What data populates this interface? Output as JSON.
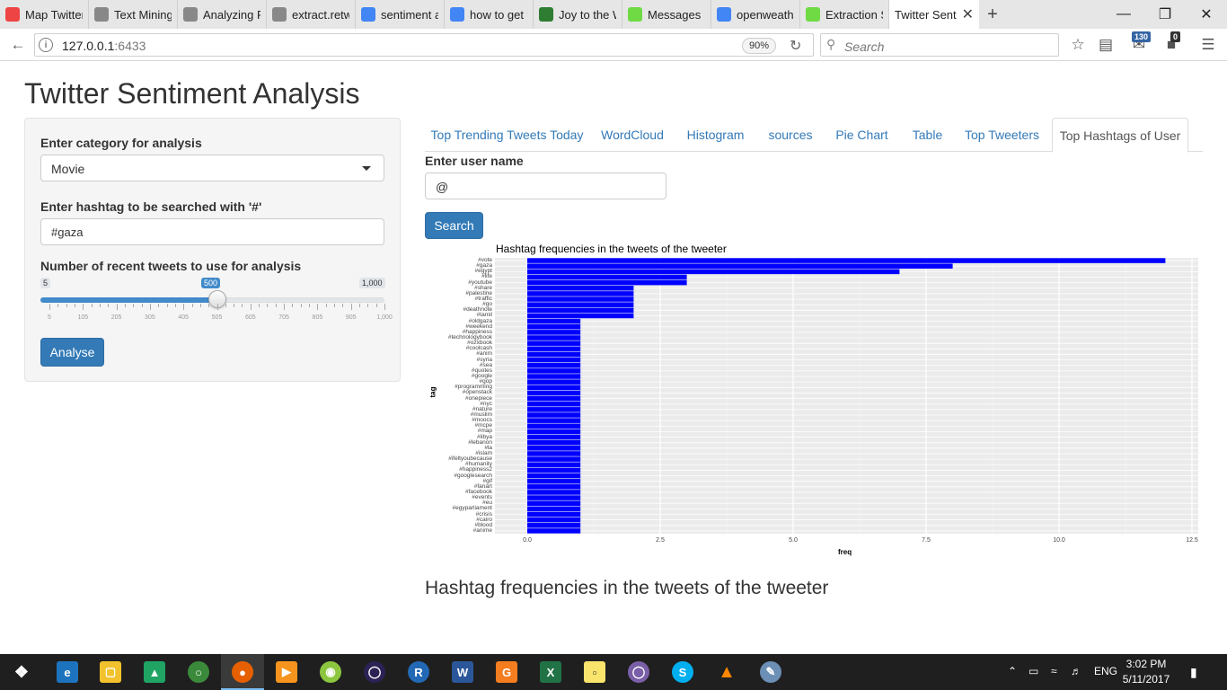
{
  "browser": {
    "tabs": [
      {
        "title": "Map Twitter",
        "icon": "map-icon",
        "color": "#e44"
      },
      {
        "title": "Text Mining wit",
        "icon": "page-icon",
        "color": "#888"
      },
      {
        "title": "Analyzing R-Blo",
        "icon": "page-icon",
        "color": "#888"
      },
      {
        "title": "extract.retweets",
        "icon": "page-icon",
        "color": "#888"
      },
      {
        "title": "sentiment a",
        "icon": "google-icon",
        "color": "#4285f4"
      },
      {
        "title": "how to get t",
        "icon": "google-icon",
        "color": "#4285f4"
      },
      {
        "title": "Joy to the W",
        "icon": "globe-icon",
        "color": "#2e7d32"
      },
      {
        "title": "Messages",
        "icon": "upwork-icon",
        "color": "#6fda44"
      },
      {
        "title": "openweathe",
        "icon": "google-icon",
        "color": "#4285f4"
      },
      {
        "title": "Extraction S",
        "icon": "upwork-icon",
        "color": "#6fda44"
      }
    ],
    "active_tab": "Twitter Senti",
    "url_host": "127.0.0.1",
    "url_port": ":6433",
    "zoom": "90%",
    "search_placeholder": "Search",
    "badge_count_1": "130",
    "badge_count_2": "0"
  },
  "app": {
    "title": "Twitter Sentiment Analysis",
    "sidebar": {
      "category_label": "Enter category for analysis",
      "category_value": "Movie",
      "hashtag_label": "Enter hashtag to be searched with '#'",
      "hashtag_value": "#gaza",
      "tweets_label": "Number of recent tweets to use for analysis",
      "slider_min": "5",
      "slider_max": "1,000",
      "slider_value": "500",
      "slider_fraction": 0.5,
      "slider_ticks": [
        "5",
        "105",
        "205",
        "305",
        "405",
        "505",
        "605",
        "705",
        "805",
        "905",
        "1,000"
      ],
      "analyse_label": "Analyse"
    },
    "tabs": [
      "Top Trending Tweets Today",
      "WordCloud",
      "Histogram",
      "sources",
      "Pie Chart",
      "Table",
      "Top Tweeters",
      "Top Hashtags of User"
    ],
    "active_tab_index": 7,
    "user_label": "Enter user name",
    "user_value": "@",
    "search_label": "Search",
    "heading": "Hashtag frequencies in the tweets of the tweeter"
  },
  "chart_data": {
    "type": "bar",
    "orientation": "horizontal",
    "title": "Hashtag frequencies in the tweets of the tweeter",
    "xlabel": "freq",
    "ylabel": "tag",
    "xlim": [
      0,
      12.5
    ],
    "xticks": [
      "0.0",
      "2.5",
      "5.0",
      "7.5",
      "10.0",
      "12.5"
    ],
    "bar_color": "#0000ff",
    "panel_color": "#ebebeb",
    "grid": true,
    "categories": [
      "#vote",
      "#gaza",
      "#egypt",
      "#life",
      "#youtube",
      "#share",
      "#palestine",
      "#traffic",
      "#go",
      "#deathnote",
      "#tamil",
      "#oldgaza",
      "#weekend",
      "#happiness",
      "#technologybook",
      "#ozxbook",
      "#coolcash",
      "#anim",
      "#syria",
      "#sea",
      "#quotes",
      "#google",
      "#gop",
      "#programming",
      "#openstack",
      "#onepiece",
      "#nyc",
      "#nature",
      "#muslim",
      "#moocs",
      "#mcpe",
      "#map",
      "#libya",
      "#lebanon",
      "#la",
      "#islam",
      "#ifeltyoubecause",
      "#humanity",
      "#happiness2",
      "#googlesearch",
      "#gif",
      "#fanart",
      "#facebook",
      "#events",
      "#eu",
      "#egyparliament",
      "#crisis",
      "#cairo",
      "#blood",
      "#anime"
    ],
    "values": [
      12,
      8,
      7,
      3,
      3,
      2,
      2,
      2,
      2,
      2,
      2,
      1,
      1,
      1,
      1,
      1,
      1,
      1,
      1,
      1,
      1,
      1,
      1,
      1,
      1,
      1,
      1,
      1,
      1,
      1,
      1,
      1,
      1,
      1,
      1,
      1,
      1,
      1,
      1,
      1,
      1,
      1,
      1,
      1,
      1,
      1,
      1,
      1,
      1,
      1
    ]
  }
}
